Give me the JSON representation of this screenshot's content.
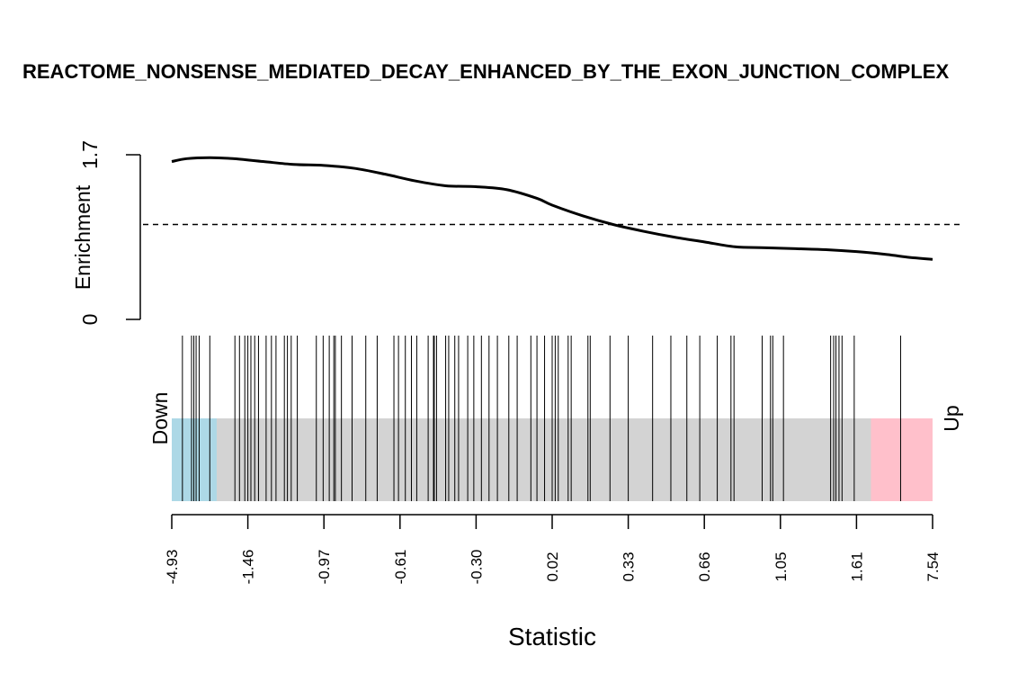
{
  "chart_data": {
    "type": "barcode",
    "title": "REACTOME_NONSENSE_MEDIATED_DECAY_ENHANCED_BY_THE_EXON_JUNCTION_COMPLEX",
    "xlabel": "Statistic",
    "ylabel": "Enrichment",
    "y_ticks": [
      "0",
      "1.7"
    ],
    "ylim": [
      0,
      1.7
    ],
    "reference_line": 0.98,
    "x_tick_labels": [
      "-4.93",
      "-1.46",
      "-0.97",
      "-0.61",
      "-0.30",
      "0.02",
      "0.33",
      "0.66",
      "1.05",
      "1.61",
      "7.54"
    ],
    "down_label": "Down",
    "up_label": "Up",
    "colors": {
      "down_region": "#add8e6",
      "up_region": "#ffc0cb",
      "middle_region": "#d3d3d3",
      "curve": "#000000",
      "barcode": "#000000"
    },
    "regions": {
      "down_end_fraction": 0.059,
      "up_start_fraction": 0.919
    },
    "enrichment_curve": {
      "x_fraction": [
        0,
        0.02,
        0.05,
        0.08,
        0.12,
        0.16,
        0.2,
        0.24,
        0.28,
        0.32,
        0.36,
        0.4,
        0.44,
        0.48,
        0.5,
        0.54,
        0.58,
        0.62,
        0.66,
        0.7,
        0.74,
        0.78,
        0.82,
        0.86,
        0.9,
        0.94,
        0.97,
        1.0
      ],
      "y": [
        1.63,
        1.66,
        1.67,
        1.66,
        1.63,
        1.6,
        1.59,
        1.56,
        1.5,
        1.43,
        1.38,
        1.37,
        1.34,
        1.25,
        1.18,
        1.07,
        0.98,
        0.91,
        0.85,
        0.8,
        0.75,
        0.74,
        0.73,
        0.72,
        0.7,
        0.67,
        0.64,
        0.62
      ]
    },
    "barcode_positions_fraction": [
      0.014,
      0.026,
      0.029,
      0.032,
      0.036,
      0.05,
      0.083,
      0.089,
      0.096,
      0.1,
      0.104,
      0.109,
      0.114,
      0.124,
      0.131,
      0.137,
      0.148,
      0.152,
      0.157,
      0.165,
      0.19,
      0.199,
      0.207,
      0.213,
      0.215,
      0.223,
      0.237,
      0.255,
      0.27,
      0.292,
      0.298,
      0.307,
      0.315,
      0.322,
      0.337,
      0.344,
      0.345,
      0.348,
      0.36,
      0.364,
      0.372,
      0.377,
      0.389,
      0.397,
      0.407,
      0.417,
      0.428,
      0.443,
      0.454,
      0.472,
      0.48,
      0.49,
      0.5,
      0.504,
      0.508,
      0.521,
      0.525,
      0.547,
      0.55,
      0.576,
      0.6,
      0.632,
      0.656,
      0.677,
      0.694,
      0.717,
      0.735,
      0.739,
      0.776,
      0.787,
      0.79,
      0.804,
      0.866,
      0.87,
      0.873,
      0.877,
      0.881,
      0.897,
      0.958
    ]
  }
}
